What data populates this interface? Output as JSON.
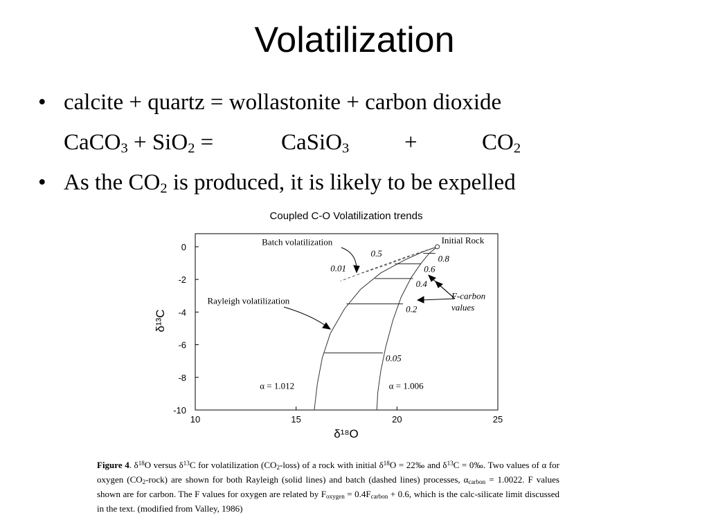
{
  "slide": {
    "title": "Volatilization",
    "bullet1": "calcite + quartz = wollastonite + carbon dioxide",
    "equation": {
      "reactant1": "CaCO",
      "reactant1_sub": "3",
      "plus1": "+ SiO",
      "reactant2_sub": "2",
      "equals": "=",
      "product1": "CaSiO",
      "product1_sub": "3",
      "plus2": "+",
      "product2": "CO",
      "product2_sub": "2"
    },
    "bullet2": {
      "pre": "As the CO",
      "sub": "2",
      "post": " is produced, it is likely to be expelled"
    },
    "bullet_symbol": "•"
  },
  "chart_data": {
    "type": "line",
    "title": "Coupled C-O Volatilization trends",
    "xlabel": "δ¹⁸O",
    "ylabel": "δ¹³C",
    "xlim": [
      10,
      25
    ],
    "ylim": [
      -10,
      0.8
    ],
    "xticks": [
      "10",
      "15",
      "20",
      "25"
    ],
    "yticks": [
      "0",
      "-2",
      "-4",
      "-6",
      "-8",
      "-10"
    ],
    "initial_point": {
      "x": 22,
      "y": 0,
      "label": "Initial Rock"
    },
    "series": [
      {
        "name": "α = 1.012",
        "style": "solid",
        "x": [
          22,
          21.3,
          20.4,
          19.2,
          18.2,
          17.4,
          16.7,
          16.3,
          16.05,
          15.9
        ],
        "y": [
          0,
          -0.3,
          -0.8,
          -1.6,
          -2.6,
          -3.8,
          -5.3,
          -6.8,
          -8.4,
          -10
        ]
      },
      {
        "name": "α = 1.006",
        "style": "solid",
        "x": [
          22,
          21.6,
          21.2,
          20.7,
          20.2,
          19.8,
          19.45,
          19.2,
          19.05,
          19.0
        ],
        "y": [
          0,
          -0.4,
          -1.0,
          -1.9,
          -3.1,
          -4.5,
          -6.1,
          -7.6,
          -8.9,
          -10
        ]
      },
      {
        "name": "batch-1.012",
        "style": "dashed",
        "x": [
          22,
          20.5,
          18.7,
          17.2
        ],
        "y": [
          0,
          -0.6,
          -1.4,
          -2.1
        ]
      },
      {
        "name": "batch-1.006",
        "style": "dashed",
        "x": [
          22,
          20.8,
          19.5,
          18.3
        ],
        "y": [
          0,
          -0.5,
          -1.1,
          -1.6
        ]
      }
    ],
    "f_lines": [
      {
        "label": "0.8",
        "y": -0.4,
        "x0": 21.3,
        "x1": 21.9
      },
      {
        "label": "0.6",
        "y": -1.05,
        "x0": 19.9,
        "x1": 21.2
      },
      {
        "label": "0.4",
        "y": -1.95,
        "x0": 18.9,
        "x1": 20.8
      },
      {
        "label": "0.2",
        "y": -3.5,
        "x0": 17.5,
        "x1": 20.3
      },
      {
        "label": "0.05",
        "y": -6.5,
        "x0": 16.4,
        "x1": 19.3
      }
    ],
    "batch_labels": [
      {
        "label": "0.5",
        "x": 18.7,
        "y": -0.6
      },
      {
        "label": "0.01",
        "x": 16.7,
        "y": -1.5
      }
    ],
    "annotations": [
      {
        "text": "Batch volatilization",
        "x": 13.3,
        "y": 0.1
      },
      {
        "text": "Rayleigh volatilization",
        "x": 10.6,
        "y": -3.5
      },
      {
        "text": "F-carbon",
        "x": 22.7,
        "y": -3.2
      },
      {
        "text": "values",
        "x": 22.7,
        "y": -3.9
      },
      {
        "text": "α = 1.012",
        "x": 13.2,
        "y": -8.7
      },
      {
        "text": "α = 1.006",
        "x": 19.6,
        "y": -8.7
      }
    ],
    "grid": false,
    "legend": "none"
  },
  "caption": {
    "fig": "Figure 4",
    "p1": ".  δ",
    "p1_sup": "18",
    "p2": "O versus δ",
    "p2_sup": "13",
    "p3": "C for volatilization (CO",
    "p3_sub": "2",
    "p4": "-loss) of a rock with initial δ",
    "p4_sup": "18",
    "p5": "O = 22‰ and δ",
    "p5_sup": "13",
    "p6": "C = 0‰.  Two values of α for oxygen (CO",
    "p6_sub": "2",
    "p7": "-rock) are shown for both Rayleigh (solid lines) and batch (dashed lines) processes, α",
    "p7_sub": "carbon",
    "p8": " = 1.0022.  F values shown are for carbon.  The F values for oxygen are related by F",
    "p8_sub": "oxygen",
    "p9": " = 0.4F",
    "p9_sub": "carbon",
    "p10": " + 0.6, which is the calc-silicate limit discussed in the text.  (modified from Valley, 1986)"
  }
}
